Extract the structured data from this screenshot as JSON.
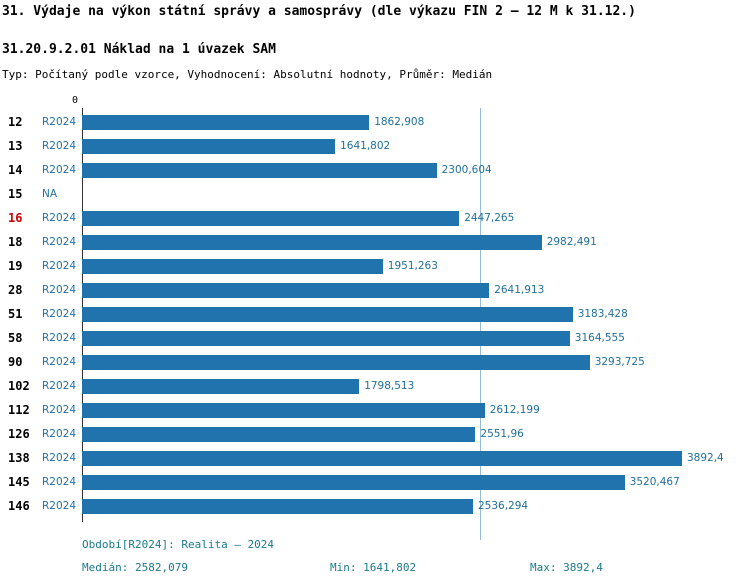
{
  "header": {
    "title": "31. Výdaje na výkon státní správy a samosprávy (dle výkazu FIN 2 – 12 M k 31.12.)",
    "subtitle": "31.20.9.2.01 Náklad na 1 úvazek SAM",
    "meta": "Typ: Počítaný podle vzorce, Vyhodnocení: Absolutní hodnoty, Průměr: Medián"
  },
  "chart_data": {
    "type": "bar",
    "orientation": "horizontal",
    "axis_origin_label": "0",
    "xlim": [
      0,
      3892.4
    ],
    "median_value": 2582.079,
    "series_name": "R2024",
    "rows": [
      {
        "id": "12",
        "period": "R2024",
        "value": 1862.908,
        "value_label": "1862,908",
        "highlight": false
      },
      {
        "id": "13",
        "period": "R2024",
        "value": 1641.802,
        "value_label": "1641,802",
        "highlight": false
      },
      {
        "id": "14",
        "period": "R2024",
        "value": 2300.604,
        "value_label": "2300,604",
        "highlight": false
      },
      {
        "id": "15",
        "period": "NA",
        "value": null,
        "value_label": "",
        "highlight": false
      },
      {
        "id": "16",
        "period": "R2024",
        "value": 2447.265,
        "value_label": "2447,265",
        "highlight": true
      },
      {
        "id": "18",
        "period": "R2024",
        "value": 2982.491,
        "value_label": "2982,491",
        "highlight": false
      },
      {
        "id": "19",
        "period": "R2024",
        "value": 1951.263,
        "value_label": "1951,263",
        "highlight": false
      },
      {
        "id": "28",
        "period": "R2024",
        "value": 2641.913,
        "value_label": "2641,913",
        "highlight": false
      },
      {
        "id": "51",
        "period": "R2024",
        "value": 3183.428,
        "value_label": "3183,428",
        "highlight": false
      },
      {
        "id": "58",
        "period": "R2024",
        "value": 3164.555,
        "value_label": "3164,555",
        "highlight": false
      },
      {
        "id": "90",
        "period": "R2024",
        "value": 3293.725,
        "value_label": "3293,725",
        "highlight": false
      },
      {
        "id": "102",
        "period": "R2024",
        "value": 1798.513,
        "value_label": "1798,513",
        "highlight": false
      },
      {
        "id": "112",
        "period": "R2024",
        "value": 2612.199,
        "value_label": "2612,199",
        "highlight": false
      },
      {
        "id": "126",
        "period": "R2024",
        "value": 2551.96,
        "value_label": "2551,96",
        "highlight": false
      },
      {
        "id": "138",
        "period": "R2024",
        "value": 3892.4,
        "value_label": "3892,4",
        "highlight": false
      },
      {
        "id": "145",
        "period": "R2024",
        "value": 3520.467,
        "value_label": "3520,467",
        "highlight": false
      },
      {
        "id": "146",
        "period": "R2024",
        "value": 2536.294,
        "value_label": "2536,294",
        "highlight": false
      }
    ]
  },
  "footer": {
    "period_line": "Období[R2024]: Realita – 2024",
    "median_line": "Medián: 2582,079",
    "min_line": "Min: 1641,802",
    "max_line": "Max: 3892,4"
  },
  "colors": {
    "bar": "#2173ad",
    "accent_text": "#1f6f9a",
    "footer_text": "#1b7a8a",
    "highlight_row": "#cc0000",
    "median_line": "#95bdd6",
    "axis_line": "#333333"
  }
}
